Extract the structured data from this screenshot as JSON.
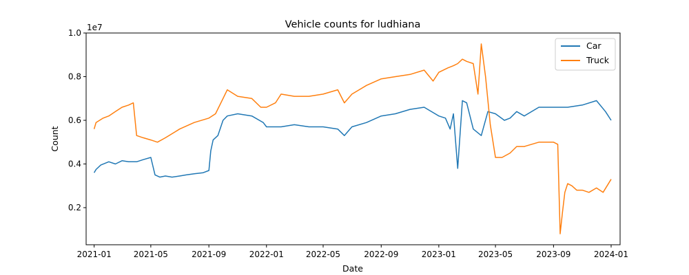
{
  "chart_data": {
    "type": "line",
    "title": "Vehicle counts for ludhiana",
    "xlabel": "Date",
    "ylabel": "Count",
    "y_offset_label": "1e7",
    "xlim": [
      "2020-12-15",
      "2024-01-20"
    ],
    "ylim": [
      0.3,
      10.0
    ],
    "y_unit_multiplier": 10000000,
    "x_ticks": [
      "2021-01",
      "2021-05",
      "2021-09",
      "2022-01",
      "2022-05",
      "2022-09",
      "2023-01",
      "2023-05",
      "2023-09",
      "2024-01"
    ],
    "y_ticks": [
      0.2,
      0.4,
      0.6,
      0.8,
      1.0
    ],
    "y_tick_labels": [
      "0.2",
      "0.4",
      "0.6",
      "0.8",
      "1.0"
    ],
    "legend_position": "top-right",
    "grid": false,
    "series": [
      {
        "name": "Car",
        "color": "#1f77b4",
        "x": [
          "2021-01-01",
          "2021-01-05",
          "2021-01-15",
          "2021-02-01",
          "2021-02-15",
          "2021-03-01",
          "2021-03-15",
          "2021-04-01",
          "2021-04-15",
          "2021-05-01",
          "2021-05-10",
          "2021-05-20",
          "2021-06-01",
          "2021-06-15",
          "2021-07-01",
          "2021-07-15",
          "2021-08-01",
          "2021-08-20",
          "2021-09-01",
          "2021-09-05",
          "2021-09-10",
          "2021-09-20",
          "2021-10-01",
          "2021-10-10",
          "2021-11-01",
          "2021-12-01",
          "2021-12-25",
          "2022-01-01",
          "2022-02-01",
          "2022-03-01",
          "2022-04-01",
          "2022-05-01",
          "2022-06-01",
          "2022-06-15",
          "2022-07-01",
          "2022-08-01",
          "2022-09-01",
          "2022-10-01",
          "2022-11-01",
          "2022-12-01",
          "2023-01-01",
          "2023-01-15",
          "2023-01-25",
          "2023-02-01",
          "2023-02-10",
          "2023-02-20",
          "2023-03-01",
          "2023-03-15",
          "2023-04-01",
          "2023-04-15",
          "2023-05-01",
          "2023-05-20",
          "2023-06-01",
          "2023-06-15",
          "2023-07-01",
          "2023-08-01",
          "2023-09-01",
          "2023-10-01",
          "2023-11-01",
          "2023-12-01",
          "2023-12-20",
          "2024-01-01"
        ],
        "y": [
          3.6,
          3.75,
          3.95,
          4.1,
          4.0,
          4.15,
          4.1,
          4.1,
          4.2,
          4.3,
          3.5,
          3.4,
          3.45,
          3.4,
          3.45,
          3.5,
          3.55,
          3.6,
          3.7,
          4.6,
          5.1,
          5.3,
          6.0,
          6.2,
          6.3,
          6.2,
          5.9,
          5.7,
          5.7,
          5.8,
          5.7,
          5.7,
          5.6,
          5.3,
          5.7,
          5.9,
          6.2,
          6.3,
          6.5,
          6.6,
          6.2,
          6.1,
          5.6,
          6.3,
          3.8,
          6.9,
          6.8,
          5.6,
          5.3,
          6.4,
          6.3,
          6.0,
          6.1,
          6.4,
          6.2,
          6.6,
          6.6,
          6.6,
          6.7,
          6.9,
          6.4,
          6.0
        ]
      },
      {
        "name": "Truck",
        "color": "#ff7f0e",
        "x": [
          "2021-01-01",
          "2021-01-05",
          "2021-01-20",
          "2021-02-01",
          "2021-02-15",
          "2021-03-01",
          "2021-03-15",
          "2021-03-25",
          "2021-04-01",
          "2021-04-15",
          "2021-05-01",
          "2021-05-15",
          "2021-06-01",
          "2021-07-01",
          "2021-08-01",
          "2021-09-01",
          "2021-09-15",
          "2021-10-01",
          "2021-10-10",
          "2021-11-01",
          "2021-12-01",
          "2021-12-20",
          "2022-01-01",
          "2022-01-20",
          "2022-02-01",
          "2022-03-01",
          "2022-04-01",
          "2022-05-01",
          "2022-06-01",
          "2022-06-15",
          "2022-07-01",
          "2022-08-01",
          "2022-09-01",
          "2022-10-01",
          "2022-11-01",
          "2022-12-01",
          "2022-12-20",
          "2023-01-01",
          "2023-01-20",
          "2023-02-01",
          "2023-02-10",
          "2023-02-20",
          "2023-03-01",
          "2023-03-15",
          "2023-03-25",
          "2023-04-01",
          "2023-04-10",
          "2023-04-20",
          "2023-05-01",
          "2023-05-15",
          "2023-06-01",
          "2023-06-15",
          "2023-07-01",
          "2023-08-01",
          "2023-09-01",
          "2023-09-10",
          "2023-09-15",
          "2023-09-20",
          "2023-09-25",
          "2023-10-01",
          "2023-10-10",
          "2023-10-20",
          "2023-11-01",
          "2023-11-15",
          "2023-12-01",
          "2023-12-15",
          "2024-01-01"
        ],
        "y": [
          5.6,
          5.9,
          6.1,
          6.2,
          6.4,
          6.6,
          6.7,
          6.8,
          5.3,
          5.2,
          5.1,
          5.0,
          5.2,
          5.6,
          5.9,
          6.1,
          6.3,
          7.0,
          7.4,
          7.1,
          7.0,
          6.6,
          6.6,
          6.8,
          7.2,
          7.1,
          7.1,
          7.2,
          7.4,
          6.8,
          7.2,
          7.6,
          7.9,
          8.0,
          8.1,
          8.3,
          7.8,
          8.2,
          8.4,
          8.5,
          8.6,
          8.8,
          8.7,
          8.6,
          7.2,
          9.5,
          8.0,
          5.8,
          4.3,
          4.3,
          4.5,
          4.8,
          4.8,
          5.0,
          5.0,
          4.9,
          0.8,
          1.8,
          2.7,
          3.1,
          3.0,
          2.8,
          2.8,
          2.7,
          2.9,
          2.7,
          3.3
        ]
      }
    ]
  }
}
